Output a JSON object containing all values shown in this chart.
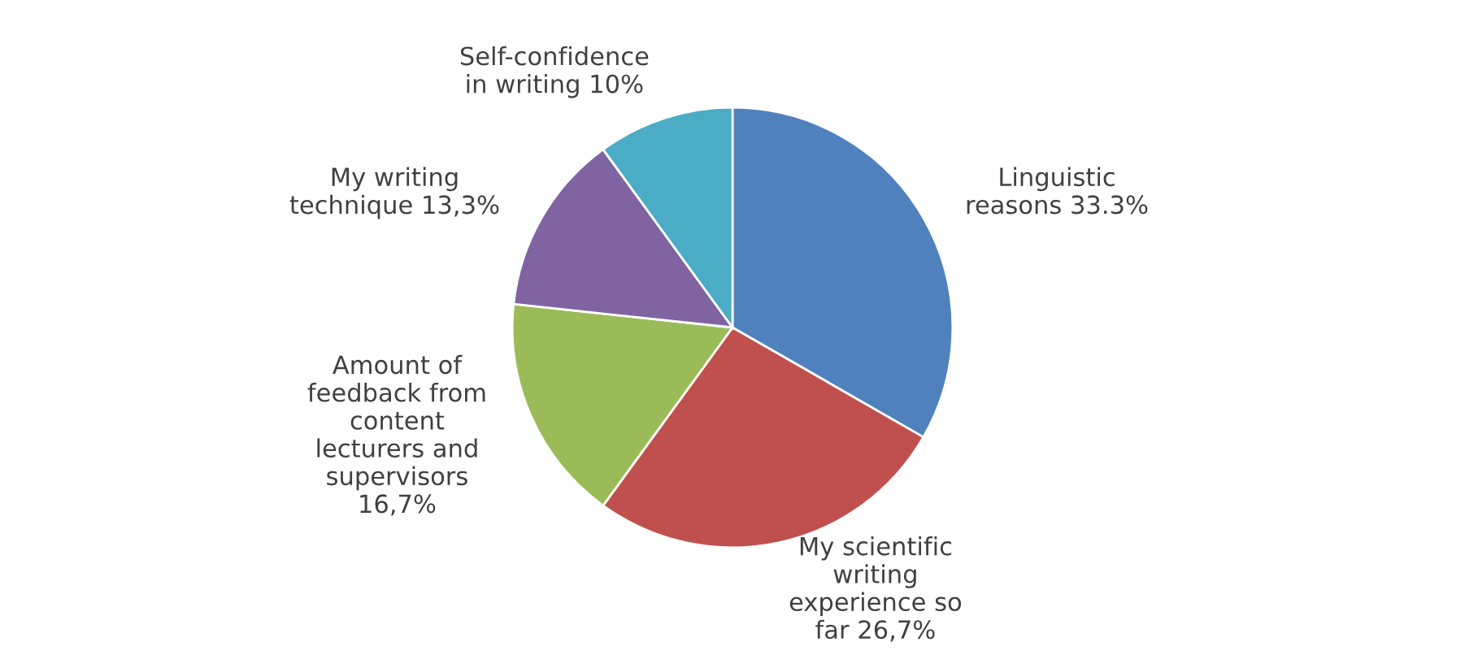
{
  "chart_data": {
    "type": "pie",
    "categories": [
      "Linguistic\nreasons",
      "My scientific\nwriting\nexperience so\nfar",
      "Amount of\nfeedback from\ncontent\nlecturers and\nsupervisors",
      "My writing\ntechnique",
      "Self-confidence\nin writing"
    ],
    "values": [
      33.3,
      26.7,
      16.7,
      13.3,
      10
    ],
    "value_labels": [
      "33.3%",
      "26,7%",
      "16,7%",
      "13,3%",
      "10%"
    ],
    "colors": [
      "#4f81bd",
      "#c0504d",
      "#9bbb59",
      "#8064a2",
      "#4bacc6"
    ]
  }
}
